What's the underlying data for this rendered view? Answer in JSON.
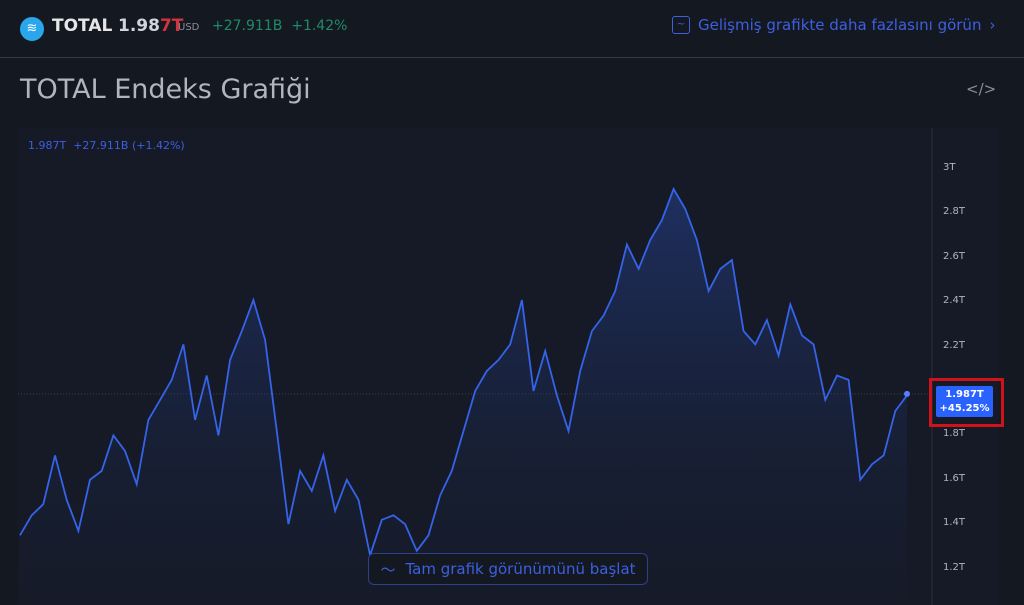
{
  "header": {
    "symbol": "TOTAL",
    "price_main": "1.98",
    "price_last": "7T",
    "currency": "USD",
    "change": "+27.911B  +1.42%",
    "advanced_link": "Gelişmiş grafikte daha fazlasını görün",
    "logo_icon": "coin-icon"
  },
  "title": "TOTAL Endeks Grafiği",
  "embed_icon": "code-icon",
  "chart_legend": "1.987T  +27.911B (+1.42%)",
  "last_price": {
    "value": "1.987T",
    "pct": "+45.25%"
  },
  "full_chart_button": "Tam grafik görünümünü başlat",
  "colors": {
    "line": "#3563e9",
    "accent": "#3d5fe0",
    "highlight": "#d0131a"
  },
  "chart_data": {
    "type": "area",
    "yticks": [
      "3T",
      "2.8T",
      "2.6T",
      "2.4T",
      "2.2T",
      "1.8T",
      "1.6T",
      "1.4T",
      "1.2T"
    ],
    "ylim": [
      1.1,
      3.1
    ],
    "last": 1.987,
    "values": [
      1.35,
      1.44,
      1.49,
      1.71,
      1.51,
      1.37,
      1.6,
      1.64,
      1.8,
      1.73,
      1.58,
      1.87,
      1.96,
      2.05,
      2.21,
      1.87,
      2.07,
      1.8,
      2.14,
      2.27,
      2.41,
      2.23,
      1.82,
      1.4,
      1.64,
      1.55,
      1.71,
      1.46,
      1.6,
      1.51,
      1.26,
      1.42,
      1.44,
      1.4,
      1.28,
      1.35,
      1.53,
      1.64,
      1.82,
      2.0,
      2.09,
      2.14,
      2.21,
      2.41,
      2.0,
      2.18,
      1.98,
      1.82,
      2.09,
      2.27,
      2.34,
      2.45,
      2.66,
      2.55,
      2.68,
      2.77,
      2.91,
      2.82,
      2.68,
      2.45,
      2.55,
      2.59,
      2.27,
      2.21,
      2.32,
      2.16,
      2.39,
      2.25,
      2.21,
      1.96,
      2.07,
      2.05,
      1.6,
      1.67,
      1.71,
      1.91,
      1.98
    ]
  }
}
